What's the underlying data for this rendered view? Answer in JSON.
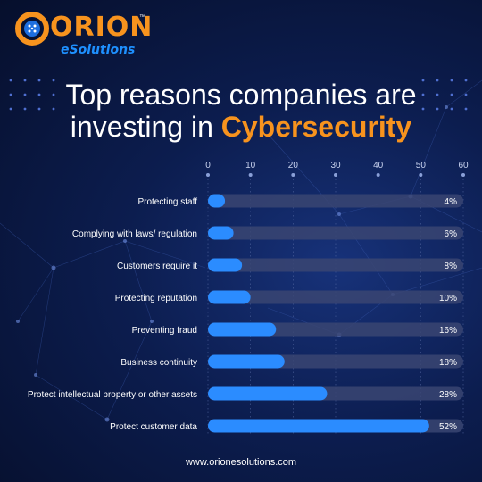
{
  "brand": {
    "name": "ORION",
    "trademark": "™",
    "subname": "eSolutions",
    "accent_color": "#f7931e",
    "blue_color": "#1e90ff"
  },
  "title": {
    "line1": "Top reasons companies are",
    "line2_prefix": "investing in ",
    "line2_accent": "Cybersecurity"
  },
  "footer": {
    "url": "www.orionesolutions.com"
  },
  "chart_data": {
    "type": "bar",
    "orientation": "horizontal",
    "categories": [
      "Protecting staff",
      "Complying with laws/ regulation",
      "Customers require it",
      "Protecting reputation",
      "Preventing fraud",
      "Business continuity",
      "Protect intellectual property or other assets",
      "Protect customer data"
    ],
    "values": [
      4,
      6,
      8,
      10,
      16,
      18,
      28,
      52
    ],
    "value_labels": [
      "4%",
      "6%",
      "8%",
      "10%",
      "16%",
      "18%",
      "28%",
      "52%"
    ],
    "xticks": [
      0,
      10,
      20,
      30,
      40,
      50,
      60
    ],
    "xlim": [
      0,
      60
    ],
    "grid": true,
    "bar_color": "#2b8cff",
    "track_color": "#3a4572"
  }
}
